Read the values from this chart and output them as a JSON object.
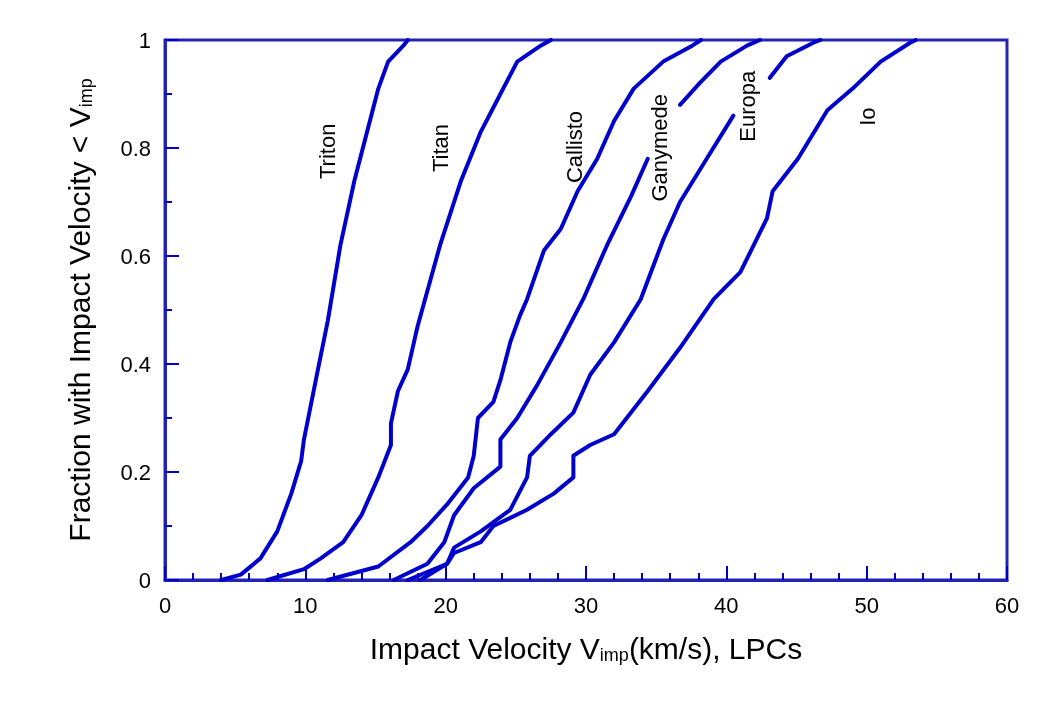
{
  "chart_data": {
    "type": "line",
    "xlabel": "Impact Velocity V$_{imp}$(km/s), LPCs",
    "ylabel": "Fraction with Impact Velocity < V$_{imp}$",
    "xlim": [
      0,
      60
    ],
    "xticks": [
      0,
      10,
      20,
      30,
      40,
      50,
      60
    ],
    "ylim": [
      0,
      1
    ],
    "yticks": [
      0,
      0.2,
      0.4,
      0.6,
      0.8,
      1
    ],
    "grid": false,
    "marker": "none",
    "line_style": "solid",
    "series": [
      {
        "name": "Triton",
        "color": "#0000cc",
        "x": [
          4.0,
          5.4,
          6.8,
          8.0,
          9.0,
          9.7,
          9.9,
          10.9,
          11.6,
          12.5,
          13.5,
          14.4,
          15.2,
          15.9,
          17.0,
          17.3
        ],
        "values": [
          0,
          0.01,
          0.04,
          0.09,
          0.16,
          0.22,
          0.26,
          0.39,
          0.48,
          0.62,
          0.74,
          0.83,
          0.91,
          0.96,
          0.99,
          1
        ]
      },
      {
        "name": "Titan",
        "color": "#0000cc",
        "x": [
          7.3,
          9.9,
          11.1,
          12.7,
          14.0,
          15.2,
          16.1,
          16.1,
          16.6,
          17.3,
          18.0,
          19.6,
          21.1,
          22.5,
          23.9,
          25.1,
          26.8,
          27.5
        ],
        "values": [
          0,
          0.02,
          0.04,
          0.07,
          0.12,
          0.19,
          0.25,
          0.29,
          0.35,
          0.39,
          0.47,
          0.62,
          0.74,
          0.83,
          0.9,
          0.96,
          0.99,
          1
        ]
      },
      {
        "name": "Callisto",
        "color": "#0000cc",
        "x": [
          11.6,
          15.2,
          17.5,
          18.7,
          20.1,
          21.6,
          22.0,
          22.3,
          23.4,
          23.9,
          24.6,
          25.3,
          25.8,
          27.0,
          28.2,
          29.4,
          30.8,
          32.0,
          33.4,
          35.5,
          37.6,
          38.2
        ],
        "values": [
          0,
          0.025,
          0.07,
          0.1,
          0.14,
          0.19,
          0.23,
          0.3,
          0.33,
          0.37,
          0.44,
          0.49,
          0.52,
          0.61,
          0.65,
          0.72,
          0.78,
          0.85,
          0.91,
          0.96,
          0.99,
          1
        ]
      },
      {
        "name": "Ganymede",
        "color": "#0000cc",
        "x": [
          16.3,
          18.7,
          19.9,
          20.6,
          22.0,
          23.9,
          23.9,
          25.1,
          26.5,
          28.2,
          29.8,
          31.5,
          33.2,
          34.4,
          35.5,
          36.7,
          38.1,
          39.6,
          41.5,
          42.4
        ],
        "values": [
          0,
          0.03,
          0.07,
          0.12,
          0.17,
          0.21,
          0.26,
          0.3,
          0.36,
          0.44,
          0.52,
          0.62,
          0.71,
          0.78,
          null,
          0.88,
          0.92,
          0.96,
          0.99,
          1
        ]
      },
      {
        "name": "Europa",
        "color": "#0000cc",
        "x": [
          17.3,
          20.1,
          20.6,
          22.5,
          24.6,
          25.8,
          26.0,
          27.5,
          29.1,
          30.3,
          32.0,
          33.9,
          35.5,
          36.7,
          38.6,
          40.5,
          41.8,
          43.1,
          44.3,
          46.2,
          46.7
        ],
        "values": [
          0,
          0.03,
          0.06,
          0.09,
          0.13,
          0.19,
          0.23,
          0.27,
          0.31,
          0.38,
          0.44,
          0.52,
          0.63,
          0.7,
          0.78,
          0.86,
          null,
          0.93,
          0.97,
          0.995,
          1
        ]
      },
      {
        "name": "Io",
        "color": "#0000cc",
        "x": [
          18.2,
          20.1,
          20.6,
          22.5,
          23.4,
          25.8,
          27.7,
          29.1,
          29.1,
          30.3,
          32.0,
          34.4,
          36.7,
          39.1,
          41.0,
          42.9,
          43.3,
          45.1,
          47.2,
          49.0,
          51.0,
          53.1,
          53.5
        ],
        "values": [
          0,
          0.03,
          0.05,
          0.07,
          0.1,
          0.13,
          0.16,
          0.19,
          0.23,
          0.25,
          0.27,
          0.35,
          0.43,
          0.52,
          0.57,
          0.67,
          0.72,
          0.78,
          0.87,
          0.91,
          0.96,
          0.995,
          1
        ]
      }
    ]
  }
}
